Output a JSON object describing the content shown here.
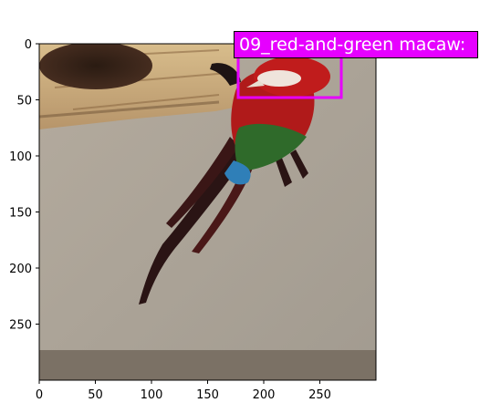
{
  "figure": {
    "x_ticks": [
      "0",
      "50",
      "100",
      "150",
      "200",
      "250"
    ],
    "y_ticks": [
      "0",
      "50",
      "100",
      "150",
      "200",
      "250"
    ],
    "detection": {
      "label": "09_red-and-green macaw:",
      "box_color": "#e600ff",
      "label_text_color": "#ffffff"
    },
    "scene": {
      "subject": "red-and-green macaw perched on a wooden nest box against a beige wall",
      "colors": {
        "wall": "#a59e92",
        "floor": "#7b7165",
        "wood": "#c9a878",
        "bird_red": "#b01a1a",
        "bird_green": "#2f6a2a",
        "bird_blue": "#2f7fb8"
      }
    }
  }
}
